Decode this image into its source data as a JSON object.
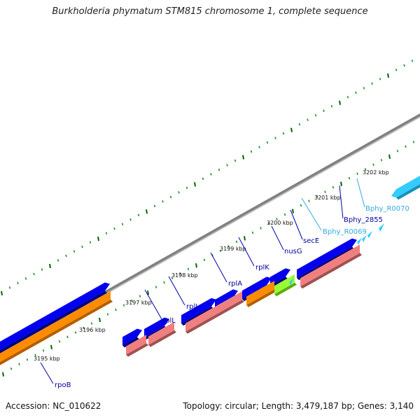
{
  "title": "Burkholderia phymatum STM815 chromosome 1, complete sequence",
  "footer": {
    "accession": "Accession: NC_010622",
    "summary": "Topology: circular; Length: 3,479,187 bp; Genes: 3,140"
  },
  "colors": {
    "backbone": "#808080",
    "cds": "#0000ee",
    "cds_dark": "#00007a",
    "rna_gene": "#33ccff",
    "rna_gene_dark": "#1890b8",
    "feature_pink": "#f08080",
    "feature_pink_dark": "#a05050",
    "feature_orange": "#ff8c00",
    "feature_orange_dark": "#b35f00",
    "feature_green": "#99ff33",
    "feature_green_dark": "#5faa10",
    "tick_major": "#006400",
    "tick_minor": "#228b22",
    "label_line": "#0000aa",
    "label_cds": "#000099",
    "label_rna": "#33aadd"
  },
  "kbp_labels": [
    "3195 kbp",
    "3196 kbp",
    "3197 kbp",
    "3198 kbp",
    "3199 kbp",
    "3200 kbp",
    "3201 kbp",
    "3202 kbp"
  ],
  "gene_labels": [
    {
      "text": "rpoB",
      "type": "cds"
    },
    {
      "text": "rplL",
      "type": "cds"
    },
    {
      "text": "rplJ",
      "type": "cds"
    },
    {
      "text": "rplA",
      "type": "cds"
    },
    {
      "text": "rplK",
      "type": "cds"
    },
    {
      "text": "nusG",
      "type": "cds"
    },
    {
      "text": "secE",
      "type": "cds"
    },
    {
      "text": "Bphy_R0069",
      "type": "rna"
    },
    {
      "text": "Bphy_2855",
      "type": "cds"
    },
    {
      "text": "Bphy_R0070",
      "type": "rna"
    }
  ]
}
